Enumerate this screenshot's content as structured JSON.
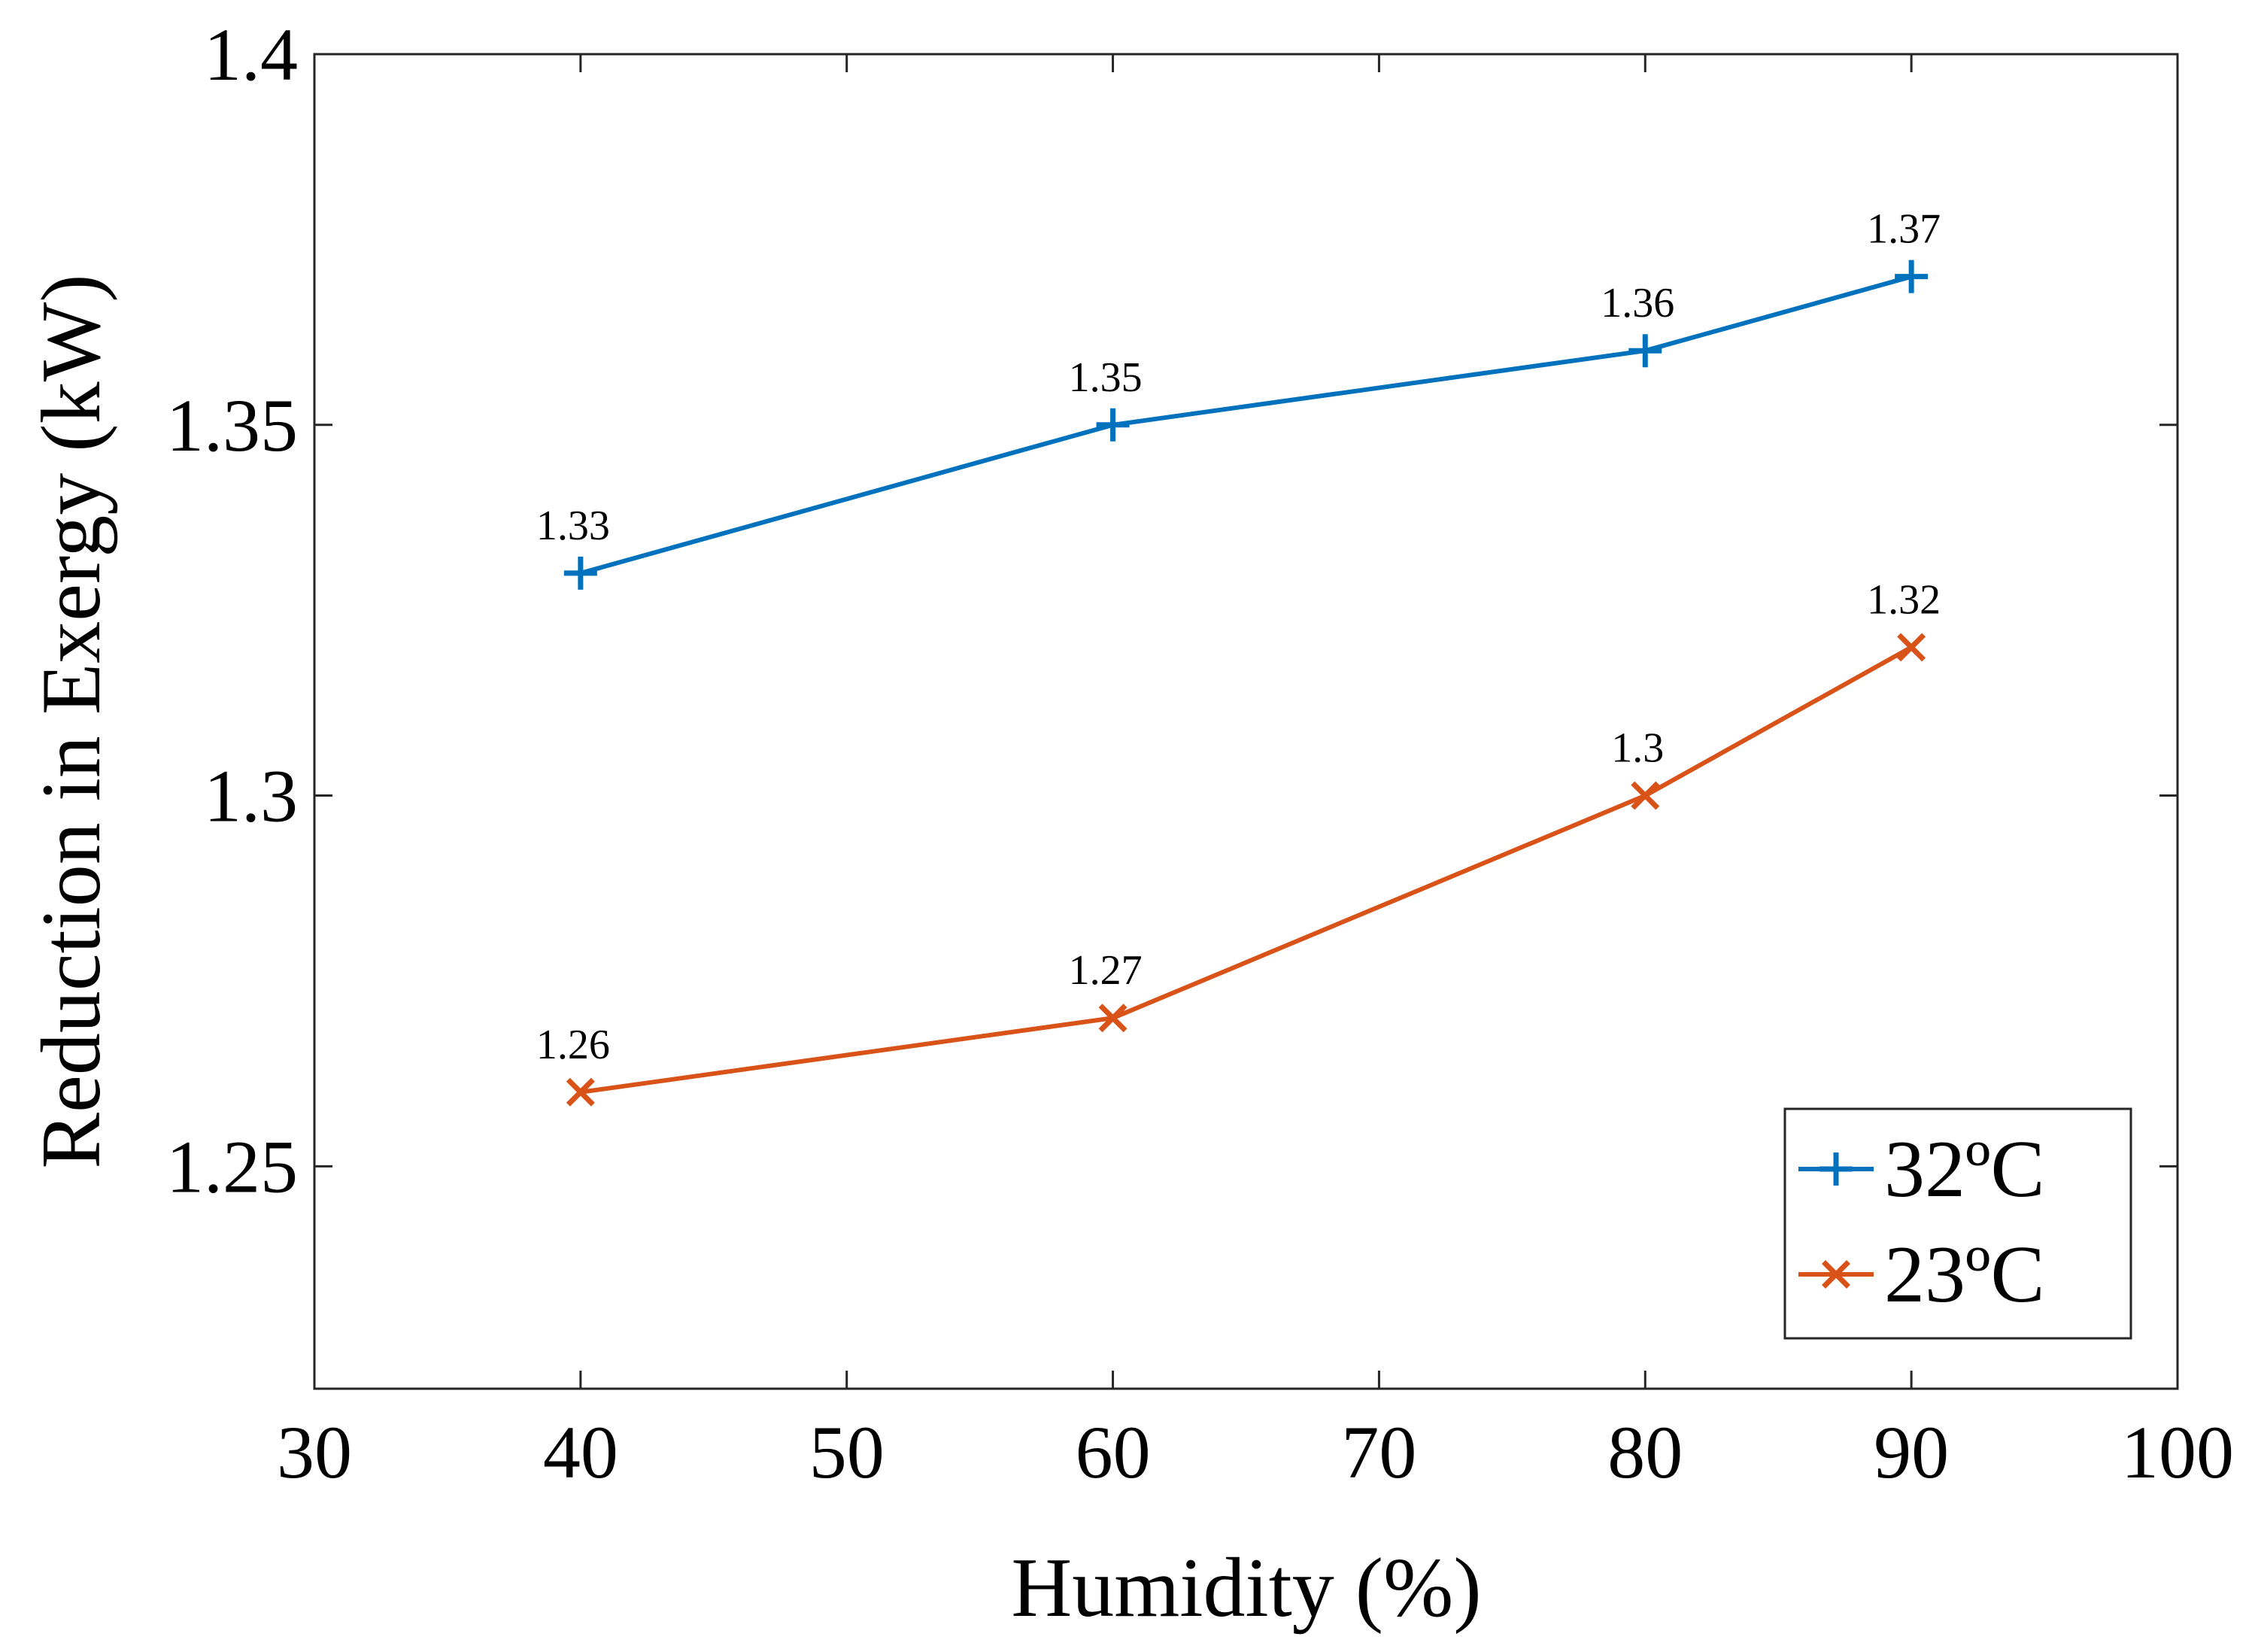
{
  "chart_data": {
    "type": "line",
    "title": "",
    "xlabel": "Humidity (%)",
    "ylabel": "Reduction in Exergy (kW)",
    "xlim": [
      30,
      100
    ],
    "ylim": [
      1.22,
      1.4
    ],
    "xticks": [
      30,
      40,
      50,
      60,
      70,
      80,
      90,
      100
    ],
    "xtick_labels": [
      "30",
      "40",
      "50",
      "60",
      "70",
      "80",
      "90",
      "100"
    ],
    "yticks": [
      1.25,
      1.3,
      1.35,
      1.4
    ],
    "ytick_labels": [
      "1.25",
      "1.3",
      "1.35",
      "1.4"
    ],
    "grid": false,
    "legend_position": "bottom-right",
    "series": [
      {
        "name": "32ºC",
        "color": "#0072BD",
        "marker": "plus",
        "x": [
          40,
          60,
          80,
          90
        ],
        "values": [
          1.33,
          1.35,
          1.36,
          1.37
        ],
        "labels": [
          "1.33",
          "1.35",
          "1.36",
          "1.37"
        ]
      },
      {
        "name": "23ºC",
        "color": "#D95319",
        "marker": "cross",
        "x": [
          40,
          60,
          80,
          90
        ],
        "values": [
          1.26,
          1.27,
          1.3,
          1.32
        ],
        "labels": [
          "1.26",
          "1.27",
          "1.3",
          "1.32"
        ]
      }
    ]
  }
}
